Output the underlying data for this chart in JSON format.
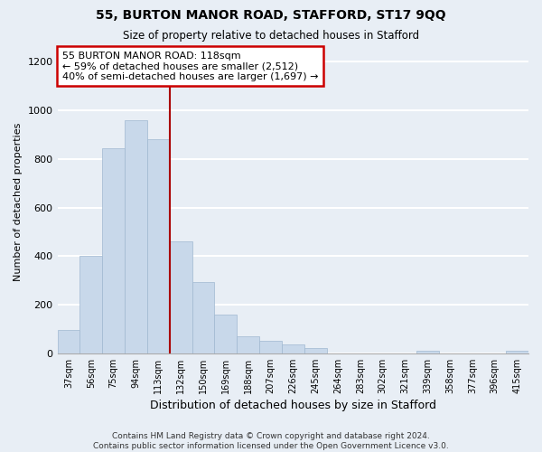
{
  "title1": "55, BURTON MANOR ROAD, STAFFORD, ST17 9QQ",
  "title2": "Size of property relative to detached houses in Stafford",
  "xlabel": "Distribution of detached houses by size in Stafford",
  "ylabel": "Number of detached properties",
  "bar_labels": [
    "37sqm",
    "56sqm",
    "75sqm",
    "94sqm",
    "113sqm",
    "132sqm",
    "150sqm",
    "169sqm",
    "188sqm",
    "207sqm",
    "226sqm",
    "245sqm",
    "264sqm",
    "283sqm",
    "302sqm",
    "321sqm",
    "339sqm",
    "358sqm",
    "377sqm",
    "396sqm",
    "415sqm"
  ],
  "bar_heights": [
    95,
    400,
    845,
    960,
    880,
    460,
    295,
    160,
    70,
    52,
    35,
    20,
    0,
    0,
    0,
    0,
    10,
    0,
    0,
    0,
    10
  ],
  "bar_color": "#c8d8ea",
  "bar_edge_color": "#a0b8d0",
  "vline_index": 5,
  "vline_color": "#aa0000",
  "annotation_line1": "55 BURTON MANOR ROAD: 118sqm",
  "annotation_line2": "← 59% of detached houses are smaller (2,512)",
  "annotation_line3": "40% of semi-detached houses are larger (1,697) →",
  "annotation_box_edgecolor": "#cc0000",
  "annotation_box_facecolor": "#ffffff",
  "ylim": [
    0,
    1250
  ],
  "yticks": [
    0,
    200,
    400,
    600,
    800,
    1000,
    1200
  ],
  "footer": "Contains HM Land Registry data © Crown copyright and database right 2024.\nContains public sector information licensed under the Open Government Licence v3.0.",
  "bg_color": "#e8eef5",
  "plot_bg_color": "#e8eef5",
  "grid_color": "#ffffff"
}
